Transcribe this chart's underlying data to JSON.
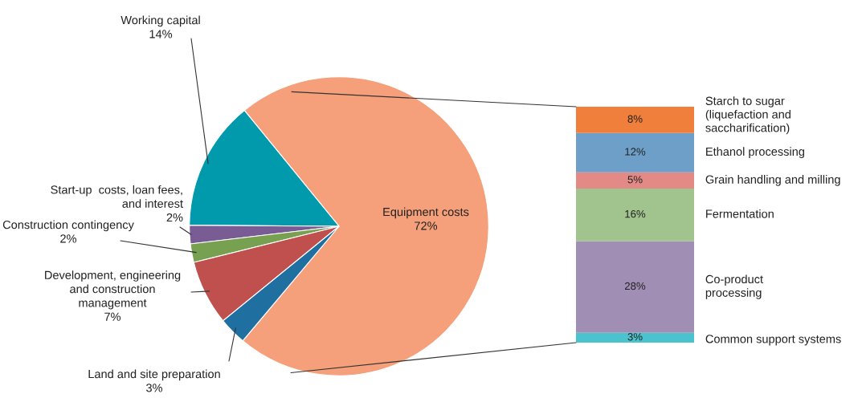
{
  "chart_data": [
    {
      "type": "pie",
      "categories": [
        "Equipment costs",
        "Working capital",
        "Start-up  costs, loan fees,\nand interest",
        "Construction contingency",
        "Development, engineering\nand construction\nmanagement",
        "Land and site preparation"
      ],
      "values": [
        72,
        14,
        2,
        2,
        7,
        3
      ],
      "value_labels": [
        "72%",
        "14%",
        "2%",
        "2%",
        "7%",
        "3%"
      ],
      "colors": [
        "#f5a07a",
        "#009aac",
        "#7a5c95",
        "#77a050",
        "#c0504d",
        "#1f6fa0"
      ]
    },
    {
      "type": "bar",
      "stacked": true,
      "categories": [
        null
      ],
      "tick_labels": false,
      "series": [
        {
          "name": "Common support systems",
          "color": "#4bc3cc",
          "values": [
            3
          ],
          "value_labels": [
            "3%"
          ]
        },
        {
          "name": "Co-product\nprocessing",
          "color": "#a08eb4",
          "values": [
            28
          ],
          "value_labels": [
            "28%"
          ]
        },
        {
          "name": "Fermentation",
          "color": "#a1c38d",
          "values": [
            16
          ],
          "value_labels": [
            "16%"
          ]
        },
        {
          "name": "Grain handling and milling",
          "color": "#e48a86",
          "values": [
            5
          ],
          "value_labels": [
            "5%"
          ]
        },
        {
          "name": "Ethanol processing",
          "color": "#6d9fc8",
          "values": [
            12
          ],
          "value_labels": [
            "12%"
          ]
        },
        {
          "name": "Starch to sugar\n(liquefaction and\nsaccharification)",
          "color": "#f07f3c",
          "values": [
            8
          ],
          "value_labels": [
            "8%"
          ]
        }
      ]
    }
  ]
}
